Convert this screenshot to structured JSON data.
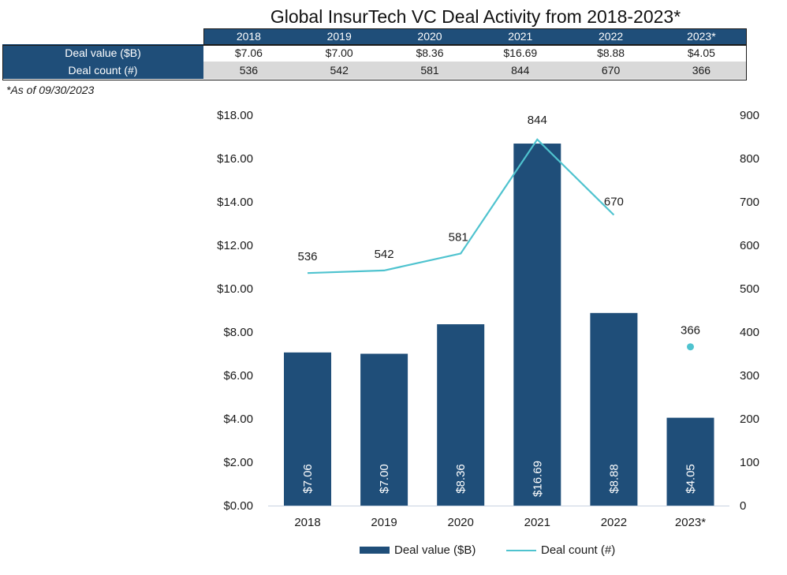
{
  "title": "Global InsurTech VC Deal Activity from 2018-2023*",
  "table": {
    "columns": [
      "2018",
      "2019",
      "2020",
      "2021",
      "2022",
      "2023*"
    ],
    "rows": [
      {
        "label": "Deal value ($B)",
        "values": [
          "$7.06",
          "$7.00",
          "$8.36",
          "$16.69",
          "$8.88",
          "$4.05"
        ]
      },
      {
        "label": "Deal count (#)",
        "values": [
          "536",
          "542",
          "581",
          "844",
          "670",
          "366"
        ]
      }
    ]
  },
  "footnote": "*As of 09/30/2023",
  "colors": {
    "bar": "#1f4e79",
    "line": "#4fc3cf",
    "axis": "#c8d3e0"
  },
  "chart_data": {
    "type": "bar",
    "title": "Global InsurTech VC Deal Activity from 2018-2023*",
    "categories": [
      "2018",
      "2019",
      "2020",
      "2021",
      "2022",
      "2023*"
    ],
    "series": [
      {
        "name": "Deal value ($B)",
        "type": "bar",
        "axis": "left",
        "values": [
          7.06,
          7.0,
          8.36,
          16.69,
          8.88,
          4.05
        ],
        "labels": [
          "$7.06",
          "$7.00",
          "$8.36",
          "$16.69",
          "$8.88",
          "$4.05"
        ]
      },
      {
        "name": "Deal count (#)",
        "type": "line",
        "axis": "right",
        "values": [
          536,
          542,
          581,
          844,
          670,
          366
        ],
        "labels": [
          "536",
          "542",
          "581",
          "844",
          "670",
          "366"
        ],
        "note": "2023* shown as an unconnected point"
      }
    ],
    "left_axis": {
      "min": 0,
      "max": 18,
      "step": 2,
      "tick_labels": [
        "$0.00",
        "$2.00",
        "$4.00",
        "$6.00",
        "$8.00",
        "$10.00",
        "$12.00",
        "$14.00",
        "$16.00",
        "$18.00"
      ]
    },
    "right_axis": {
      "min": 0,
      "max": 900,
      "step": 100,
      "tick_labels": [
        "0",
        "100",
        "200",
        "300",
        "400",
        "500",
        "600",
        "700",
        "800",
        "900"
      ]
    },
    "xlabel": "",
    "ylabel": "",
    "grid": false,
    "legend": {
      "position": "bottom",
      "entries": [
        "Deal value ($B)",
        "Deal count (#)"
      ]
    }
  }
}
